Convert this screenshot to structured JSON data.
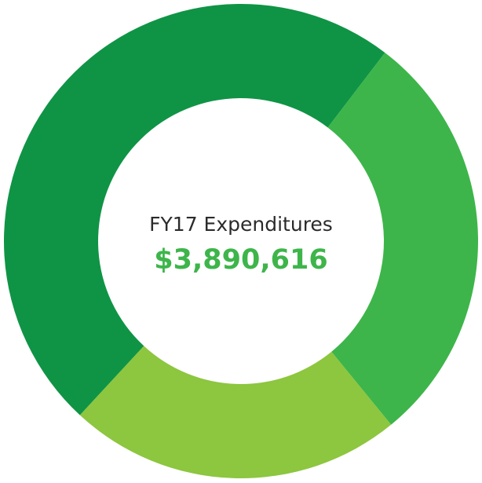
{
  "chart_data": {
    "type": "donut",
    "title": "FY17 Expenditures",
    "total": "$3,890,616",
    "categories": [
      null,
      null,
      null
    ],
    "values": [
      48.5,
      28.7,
      22.8
    ],
    "colors": [
      "#0f9445",
      "#3db54a",
      "#8dc63f"
    ]
  }
}
